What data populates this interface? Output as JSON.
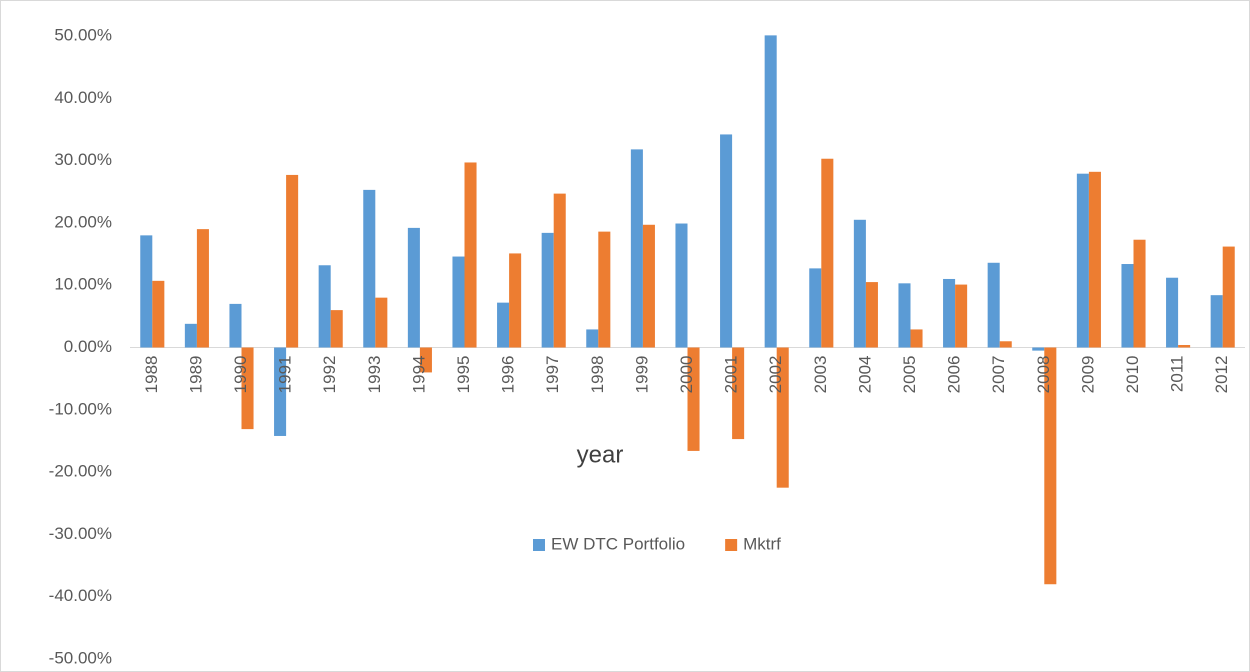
{
  "chart_data": {
    "type": "bar",
    "x_label": "year",
    "categories": [
      "1988",
      "1989",
      "1990",
      "1991",
      "1992",
      "1993",
      "1994",
      "1995",
      "1996",
      "1997",
      "1998",
      "1999",
      "2000",
      "2001",
      "2002",
      "2003",
      "2004",
      "2005",
      "2006",
      "2007",
      "2008",
      "2009",
      "2010",
      "2011",
      "2012"
    ],
    "series": [
      {
        "name": "EW DTC Portfolio",
        "color": "#5b9bd5",
        "values": [
          18,
          3.8,
          7,
          -14.2,
          13.2,
          25.3,
          19.2,
          14.6,
          7.2,
          18.4,
          2.9,
          31.8,
          19.9,
          34.2,
          50.1,
          12.7,
          20.5,
          10.3,
          11,
          13.6,
          -0.5,
          27.9,
          13.4,
          11.2,
          8.4
        ]
      },
      {
        "name": "Mktrf",
        "color": "#ed7d31",
        "values": [
          10.7,
          19,
          -13.1,
          27.7,
          6,
          8,
          -4,
          29.7,
          15.1,
          24.7,
          18.6,
          19.7,
          -16.6,
          -14.7,
          -22.5,
          30.3,
          10.5,
          2.9,
          10.1,
          1,
          -38,
          28.2,
          17.3,
          0.4,
          16.2
        ]
      }
    ],
    "ylim": [
      -50,
      50
    ],
    "yticks": [
      {
        "value": -50,
        "label": "-50.00%"
      },
      {
        "value": -40,
        "label": "-40.00%"
      },
      {
        "value": -30,
        "label": "-30.00%"
      },
      {
        "value": -20,
        "label": "-20.00%"
      },
      {
        "value": -10,
        "label": "-10.00%"
      },
      {
        "value": 0,
        "label": "0.00%"
      },
      {
        "value": 10,
        "label": "10.00%"
      },
      {
        "value": 20,
        "label": "20.00%"
      },
      {
        "value": 30,
        "label": "30.00%"
      },
      {
        "value": 40,
        "label": "40.00%"
      },
      {
        "value": 50,
        "label": "50.00%"
      }
    ],
    "grid": false,
    "legend": "bottom"
  }
}
